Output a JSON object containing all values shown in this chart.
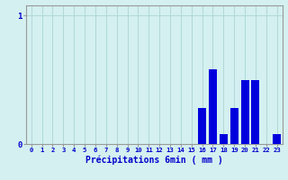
{
  "hours": [
    0,
    1,
    2,
    3,
    4,
    5,
    6,
    7,
    8,
    9,
    10,
    11,
    12,
    13,
    14,
    15,
    16,
    17,
    18,
    19,
    20,
    21,
    22,
    23
  ],
  "values": [
    0,
    0,
    0,
    0,
    0,
    0,
    0,
    0,
    0,
    0,
    0,
    0,
    0,
    0,
    0,
    0,
    0.28,
    0.58,
    0.08,
    0.28,
    0.5,
    0.5,
    0,
    0.08
  ],
  "bar_color": "#0000dd",
  "bg_color": "#d4f0f0",
  "grid_color": "#b0d8d8",
  "axis_color": "#999999",
  "xlabel": "Précipitations 6min ( mm )",
  "xlabel_color": "#0000cc",
  "tick_color": "#0000cc",
  "ytick_labels": [
    "0",
    "1"
  ],
  "ytick_vals": [
    0,
    1
  ],
  "ylim": [
    0,
    1.08
  ],
  "xlim": [
    -0.5,
    23.5
  ],
  "bar_width": 0.75
}
